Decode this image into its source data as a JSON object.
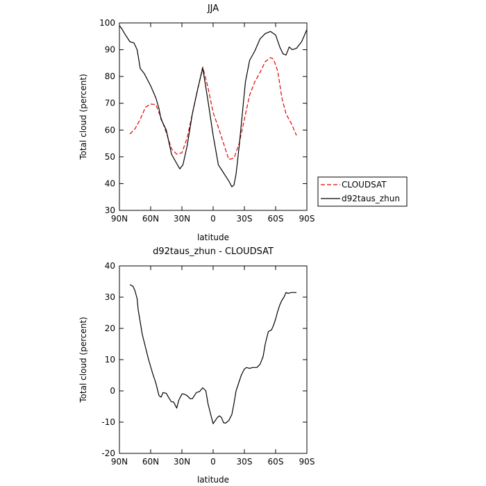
{
  "chart_data": [
    {
      "type": "line",
      "title": "JJA",
      "xlabel": "latitude",
      "ylabel": "Total cloud (percent)",
      "xlim": [
        90,
        -90
      ],
      "ylim": [
        30,
        100
      ],
      "xticks": [
        90,
        60,
        30,
        0,
        -30,
        -60,
        -90
      ],
      "xtick_labels": [
        "90N",
        "60N",
        "30N",
        "0",
        "30S",
        "60S",
        "90S"
      ],
      "yticks": [
        30,
        40,
        50,
        60,
        70,
        80,
        90,
        100
      ],
      "ytick_labels": [
        "30",
        "40",
        "50",
        "60",
        "70",
        "80",
        "90",
        "100"
      ],
      "legend": {
        "position": "right",
        "entries": [
          "CLOUDSAT",
          "d92taus_zhun"
        ]
      },
      "series": [
        {
          "name": "CLOUDSAT",
          "color": "#e00000",
          "dash": "dashed",
          "x": [
            80,
            75,
            70,
            65,
            60,
            55,
            50,
            45,
            40,
            35,
            30,
            25,
            20,
            15,
            10,
            5,
            0,
            -5,
            -10,
            -15,
            -20,
            -25,
            -30,
            -35,
            -40,
            -45,
            -50,
            -55,
            -58,
            -62,
            -66,
            -70,
            -75,
            -80
          ],
          "y": [
            58.5,
            60.5,
            64,
            68.5,
            69.7,
            69.5,
            64.5,
            59,
            53,
            51,
            51.5,
            57,
            66,
            75,
            83.5,
            76,
            66.5,
            61,
            55,
            49,
            49.5,
            55,
            64,
            73,
            78,
            81.5,
            85.5,
            87,
            86.5,
            82,
            72,
            66,
            62.5,
            58
          ]
        },
        {
          "name": "d92taus_zhun",
          "color": "#000000",
          "dash": "solid",
          "x": [
            90,
            88,
            85,
            80,
            76,
            73,
            70,
            66,
            60,
            55,
            52,
            50,
            45,
            40,
            35,
            32,
            29,
            25,
            20,
            15,
            10,
            5,
            0,
            -5,
            -10,
            -15,
            -18,
            -20,
            -22,
            -25,
            -28,
            -31,
            -35,
            -40,
            -45,
            -50,
            -55,
            -60,
            -64,
            -67,
            -70,
            -73,
            -76,
            -80,
            -85,
            -90
          ],
          "y": [
            99,
            98,
            96,
            93,
            92.5,
            90,
            83,
            81,
            76.5,
            72,
            68,
            64,
            60,
            51,
            47.5,
            45.5,
            47,
            54,
            66,
            75,
            83.2,
            71,
            58,
            47,
            44,
            41,
            38.8,
            39.5,
            43.5,
            54,
            66,
            78,
            86,
            89.5,
            94,
            96,
            96.8,
            95.5,
            91,
            88.5,
            88,
            91,
            90,
            90.5,
            93,
            97.5
          ]
        }
      ],
      "grid": false
    },
    {
      "type": "line",
      "title": "d92taus_zhun - CLOUDSAT",
      "xlabel": "latitude",
      "ylabel": "Total cloud (percent)",
      "xlim": [
        90,
        -90
      ],
      "ylim": [
        -20,
        40
      ],
      "xticks": [
        90,
        60,
        30,
        0,
        -30,
        -60,
        -90
      ],
      "xtick_labels": [
        "90N",
        "60N",
        "30N",
        "0",
        "30S",
        "60S",
        "90S"
      ],
      "yticks": [
        -20,
        -10,
        0,
        10,
        20,
        30,
        40
      ],
      "ytick_labels": [
        "-20",
        "-10",
        "0",
        "10",
        "20",
        "30",
        "40"
      ],
      "series": [
        {
          "color": "#000000",
          "dash": "solid",
          "x": [
            80,
            77,
            75,
            73,
            72,
            70,
            68,
            65,
            62,
            58,
            55,
            52,
            50,
            48,
            45,
            42,
            40,
            38,
            35,
            33,
            30,
            28,
            25,
            22,
            20,
            16,
            13,
            10,
            7,
            5,
            2,
            0,
            -2,
            -4,
            -6,
            -8,
            -10,
            -12,
            -15,
            -18,
            -20,
            -22,
            -25,
            -27,
            -30,
            -32,
            -35,
            -38,
            -42,
            -45,
            -48,
            -50,
            -53,
            -56,
            -58,
            -60,
            -62,
            -64,
            -66,
            -68,
            -70,
            -72,
            -75,
            -78,
            -80
          ],
          "y": [
            34,
            33.5,
            32,
            29.5,
            26,
            22,
            18,
            14,
            10,
            5.5,
            2.5,
            -1.5,
            -2,
            -0.5,
            -0.8,
            -2.5,
            -3.5,
            -3.5,
            -5.5,
            -3,
            -1,
            -1,
            -1.5,
            -2.5,
            -2.5,
            -0.5,
            -0.2,
            1,
            0,
            -4,
            -8,
            -10.5,
            -9.5,
            -8.5,
            -8,
            -8.5,
            -10.2,
            -10.3,
            -9.5,
            -7.5,
            -4,
            0,
            3,
            5,
            7,
            7.5,
            7.2,
            7.5,
            7.5,
            8.5,
            11,
            15,
            19,
            19.5,
            21,
            23,
            25.5,
            27.5,
            29,
            30,
            31.5,
            31.2,
            31.5,
            31.5,
            31.5
          ]
        }
      ],
      "grid": false
    }
  ]
}
